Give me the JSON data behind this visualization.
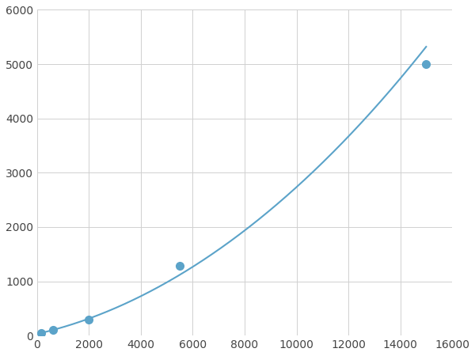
{
  "x_points": [
    156.25,
    625,
    2000,
    5500,
    15000
  ],
  "y_points": [
    50,
    100,
    300,
    1280,
    5000
  ],
  "line_color": "#5ba3c9",
  "marker_color": "#5ba3c9",
  "marker_size": 7,
  "line_width": 1.5,
  "xlim": [
    0,
    16000
  ],
  "ylim": [
    0,
    6000
  ],
  "xticks": [
    0,
    2000,
    4000,
    6000,
    8000,
    10000,
    12000,
    14000,
    16000
  ],
  "yticks": [
    0,
    1000,
    2000,
    3000,
    4000,
    5000,
    6000
  ],
  "grid_color": "#d0d0d0",
  "bg_color": "#ffffff",
  "fig_bg_color": "#ffffff"
}
